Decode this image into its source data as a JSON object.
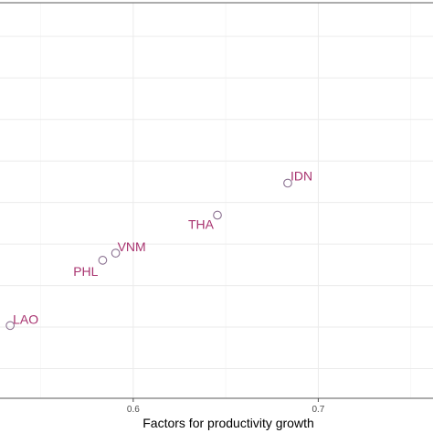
{
  "chart_data": {
    "type": "scatter",
    "xlabel": "Factors for productivity growth",
    "ylabel": "",
    "xlim": [
      0.528,
      0.762
    ],
    "ylim": [
      0,
      1
    ],
    "xticks": [
      {
        "value": 0.6,
        "label": "0.6"
      },
      {
        "value": 0.7,
        "label": "0.7"
      }
    ],
    "x_minor_breaks": [
      0.55,
      0.65,
      0.75
    ],
    "y_gridlines": [
      0.075,
      0.18,
      0.285,
      0.39,
      0.495,
      0.6,
      0.705,
      0.81,
      0.915
    ],
    "grid": true,
    "points": [
      {
        "label": "LAO",
        "x": 0.5335,
        "y": 0.184
      },
      {
        "label": "PHL",
        "x": 0.5835,
        "y": 0.349
      },
      {
        "label": "VNM",
        "x": 0.5905,
        "y": 0.367
      },
      {
        "label": "THA",
        "x": 0.6455,
        "y": 0.463
      },
      {
        "label": "IDN",
        "x": 0.6835,
        "y": 0.544
      }
    ]
  }
}
